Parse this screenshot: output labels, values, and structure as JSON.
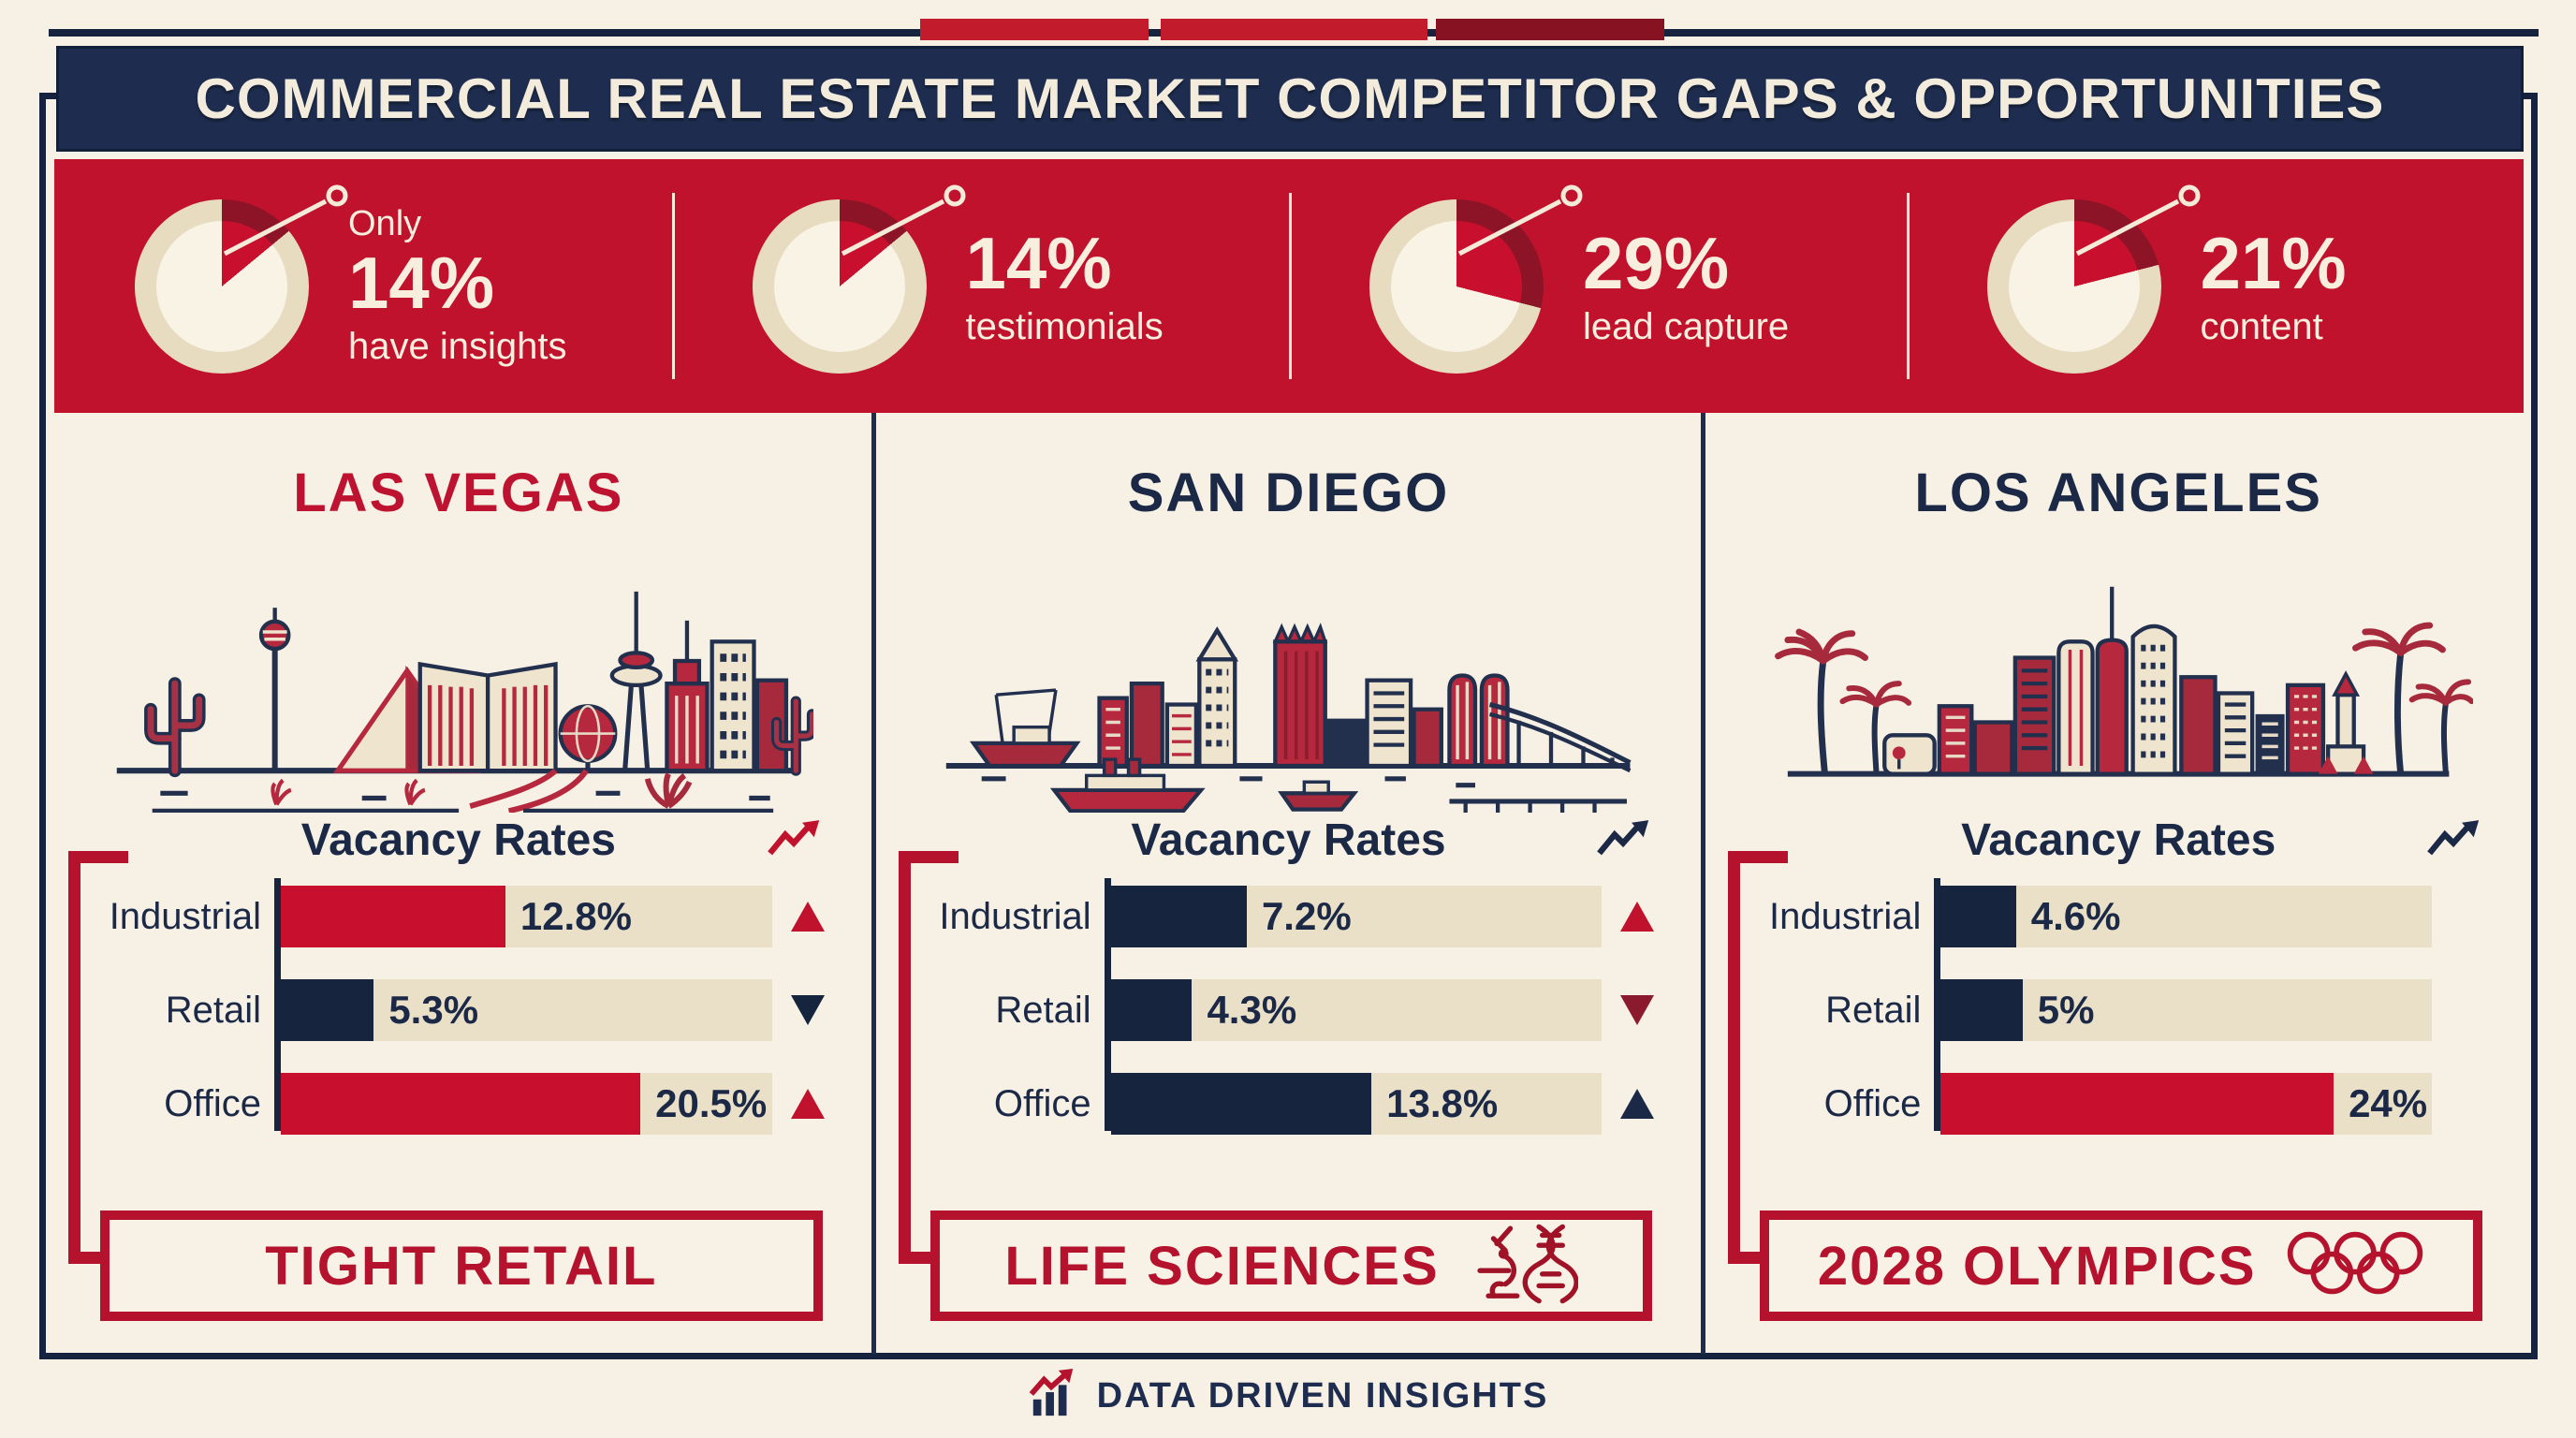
{
  "header": {
    "title": "COMMERCIAL REAL ESTATE MARKET COMPETITOR GAPS & OPPORTUNITIES"
  },
  "palette": {
    "red": "#c8102e",
    "navy": "#16243d",
    "wedge_outer": "#8c1426",
    "ring": "#e7dbc0",
    "wedge_inner": "#c8102e",
    "core_bg": "#f9f3e6",
    "banner_red": "#c0122c",
    "top_bars": [
      "#c21b2b",
      "#c21b2b",
      "#871222"
    ]
  },
  "stats": {
    "items": [
      {
        "prefix": "Only",
        "value": "14%",
        "label": "have insights",
        "pct": 14
      },
      {
        "prefix": "",
        "value": "14%",
        "label": "testimonials",
        "pct": 14
      },
      {
        "prefix": "",
        "value": "29%",
        "label": "lead capture",
        "pct": 29
      },
      {
        "prefix": "",
        "value": "21%",
        "label": "content",
        "pct": 21
      }
    ]
  },
  "cities": [
    {
      "name": "LAS VEGAS",
      "name_color": "#be1330",
      "chart": {
        "title": "Vacancy Rates",
        "trend_color": "#c0122c",
        "scale_max": 28,
        "rows": [
          {
            "label": "Industrial",
            "value": 12.8,
            "value_label": "12.8%",
            "color": "red",
            "trend": "up",
            "trend_color": "#c0122c"
          },
          {
            "label": "Retail",
            "value": 5.3,
            "value_label": "5.3%",
            "color": "navy",
            "trend": "down",
            "trend_color": "#16243d"
          },
          {
            "label": "Office",
            "value": 20.5,
            "value_label": "20.5%",
            "color": "red",
            "trend": "up",
            "trend_color": "#c0122c"
          }
        ]
      },
      "callout": {
        "label": "TIGHT RETAIL"
      }
    },
    {
      "name": "SAN DIEGO",
      "name_color": "#1b2947",
      "chart": {
        "title": "Vacancy Rates",
        "trend_color": "#1b2947",
        "scale_max": 26,
        "rows": [
          {
            "label": "Industrial",
            "value": 7.2,
            "value_label": "7.2%",
            "color": "navy",
            "trend": "up",
            "trend_color": "#c0122c"
          },
          {
            "label": "Retail",
            "value": 4.3,
            "value_label": "4.3%",
            "color": "navy",
            "trend": "down",
            "trend_color": "#8c1a2e"
          },
          {
            "label": "Office",
            "value": 13.8,
            "value_label": "13.8%",
            "color": "navy",
            "trend": "up",
            "trend_color": "#1b2947"
          }
        ]
      },
      "callout": {
        "label": "LIFE SCIENCES"
      }
    },
    {
      "name": "LOS ANGELES",
      "name_color": "#1b2947",
      "chart": {
        "title": "Vacancy Rates",
        "trend_color": "#1b2947",
        "scale_max": 30,
        "rows": [
          {
            "label": "Industrial",
            "value": 4.6,
            "value_label": "4.6%",
            "color": "navy",
            "trend": null,
            "trend_color": null
          },
          {
            "label": "Retail",
            "value": 5,
            "value_label": "5%",
            "color": "navy",
            "trend": null,
            "trend_color": null
          },
          {
            "label": "Office",
            "value": 24,
            "value_label": "24%",
            "color": "red",
            "trend": null,
            "trend_color": null
          }
        ]
      },
      "callout": {
        "label": "2028 OLYMPICS"
      }
    }
  ],
  "footer": {
    "brand": "DATA DRIVEN INSIGHTS"
  },
  "chart_data": [
    {
      "type": "pie",
      "title": "Only 14% have insights",
      "labels": [
        "have insights",
        "other"
      ],
      "values": [
        14,
        86
      ]
    },
    {
      "type": "pie",
      "title": "14% testimonials",
      "labels": [
        "testimonials",
        "other"
      ],
      "values": [
        14,
        86
      ]
    },
    {
      "type": "pie",
      "title": "29% lead capture",
      "labels": [
        "lead capture",
        "other"
      ],
      "values": [
        29,
        71
      ]
    },
    {
      "type": "pie",
      "title": "21% content",
      "labels": [
        "content",
        "other"
      ],
      "values": [
        21,
        79
      ]
    },
    {
      "type": "bar",
      "title": "Las Vegas Vacancy Rates",
      "orientation": "horizontal",
      "categories": [
        "Industrial",
        "Retail",
        "Office"
      ],
      "values": [
        12.8,
        5.3,
        20.5
      ],
      "unit": "%",
      "xlim": [
        0,
        28
      ],
      "trends": [
        "up",
        "down",
        "up"
      ]
    },
    {
      "type": "bar",
      "title": "San Diego Vacancy Rates",
      "orientation": "horizontal",
      "categories": [
        "Industrial",
        "Retail",
        "Office"
      ],
      "values": [
        7.2,
        4.3,
        13.8
      ],
      "unit": "%",
      "xlim": [
        0,
        26
      ],
      "trends": [
        "up",
        "down",
        "up"
      ]
    },
    {
      "type": "bar",
      "title": "Los Angeles Vacancy Rates",
      "orientation": "horizontal",
      "categories": [
        "Industrial",
        "Retail",
        "Office"
      ],
      "values": [
        4.6,
        5,
        24
      ],
      "unit": "%",
      "xlim": [
        0,
        30
      ],
      "trends": [
        null,
        null,
        null
      ]
    }
  ]
}
